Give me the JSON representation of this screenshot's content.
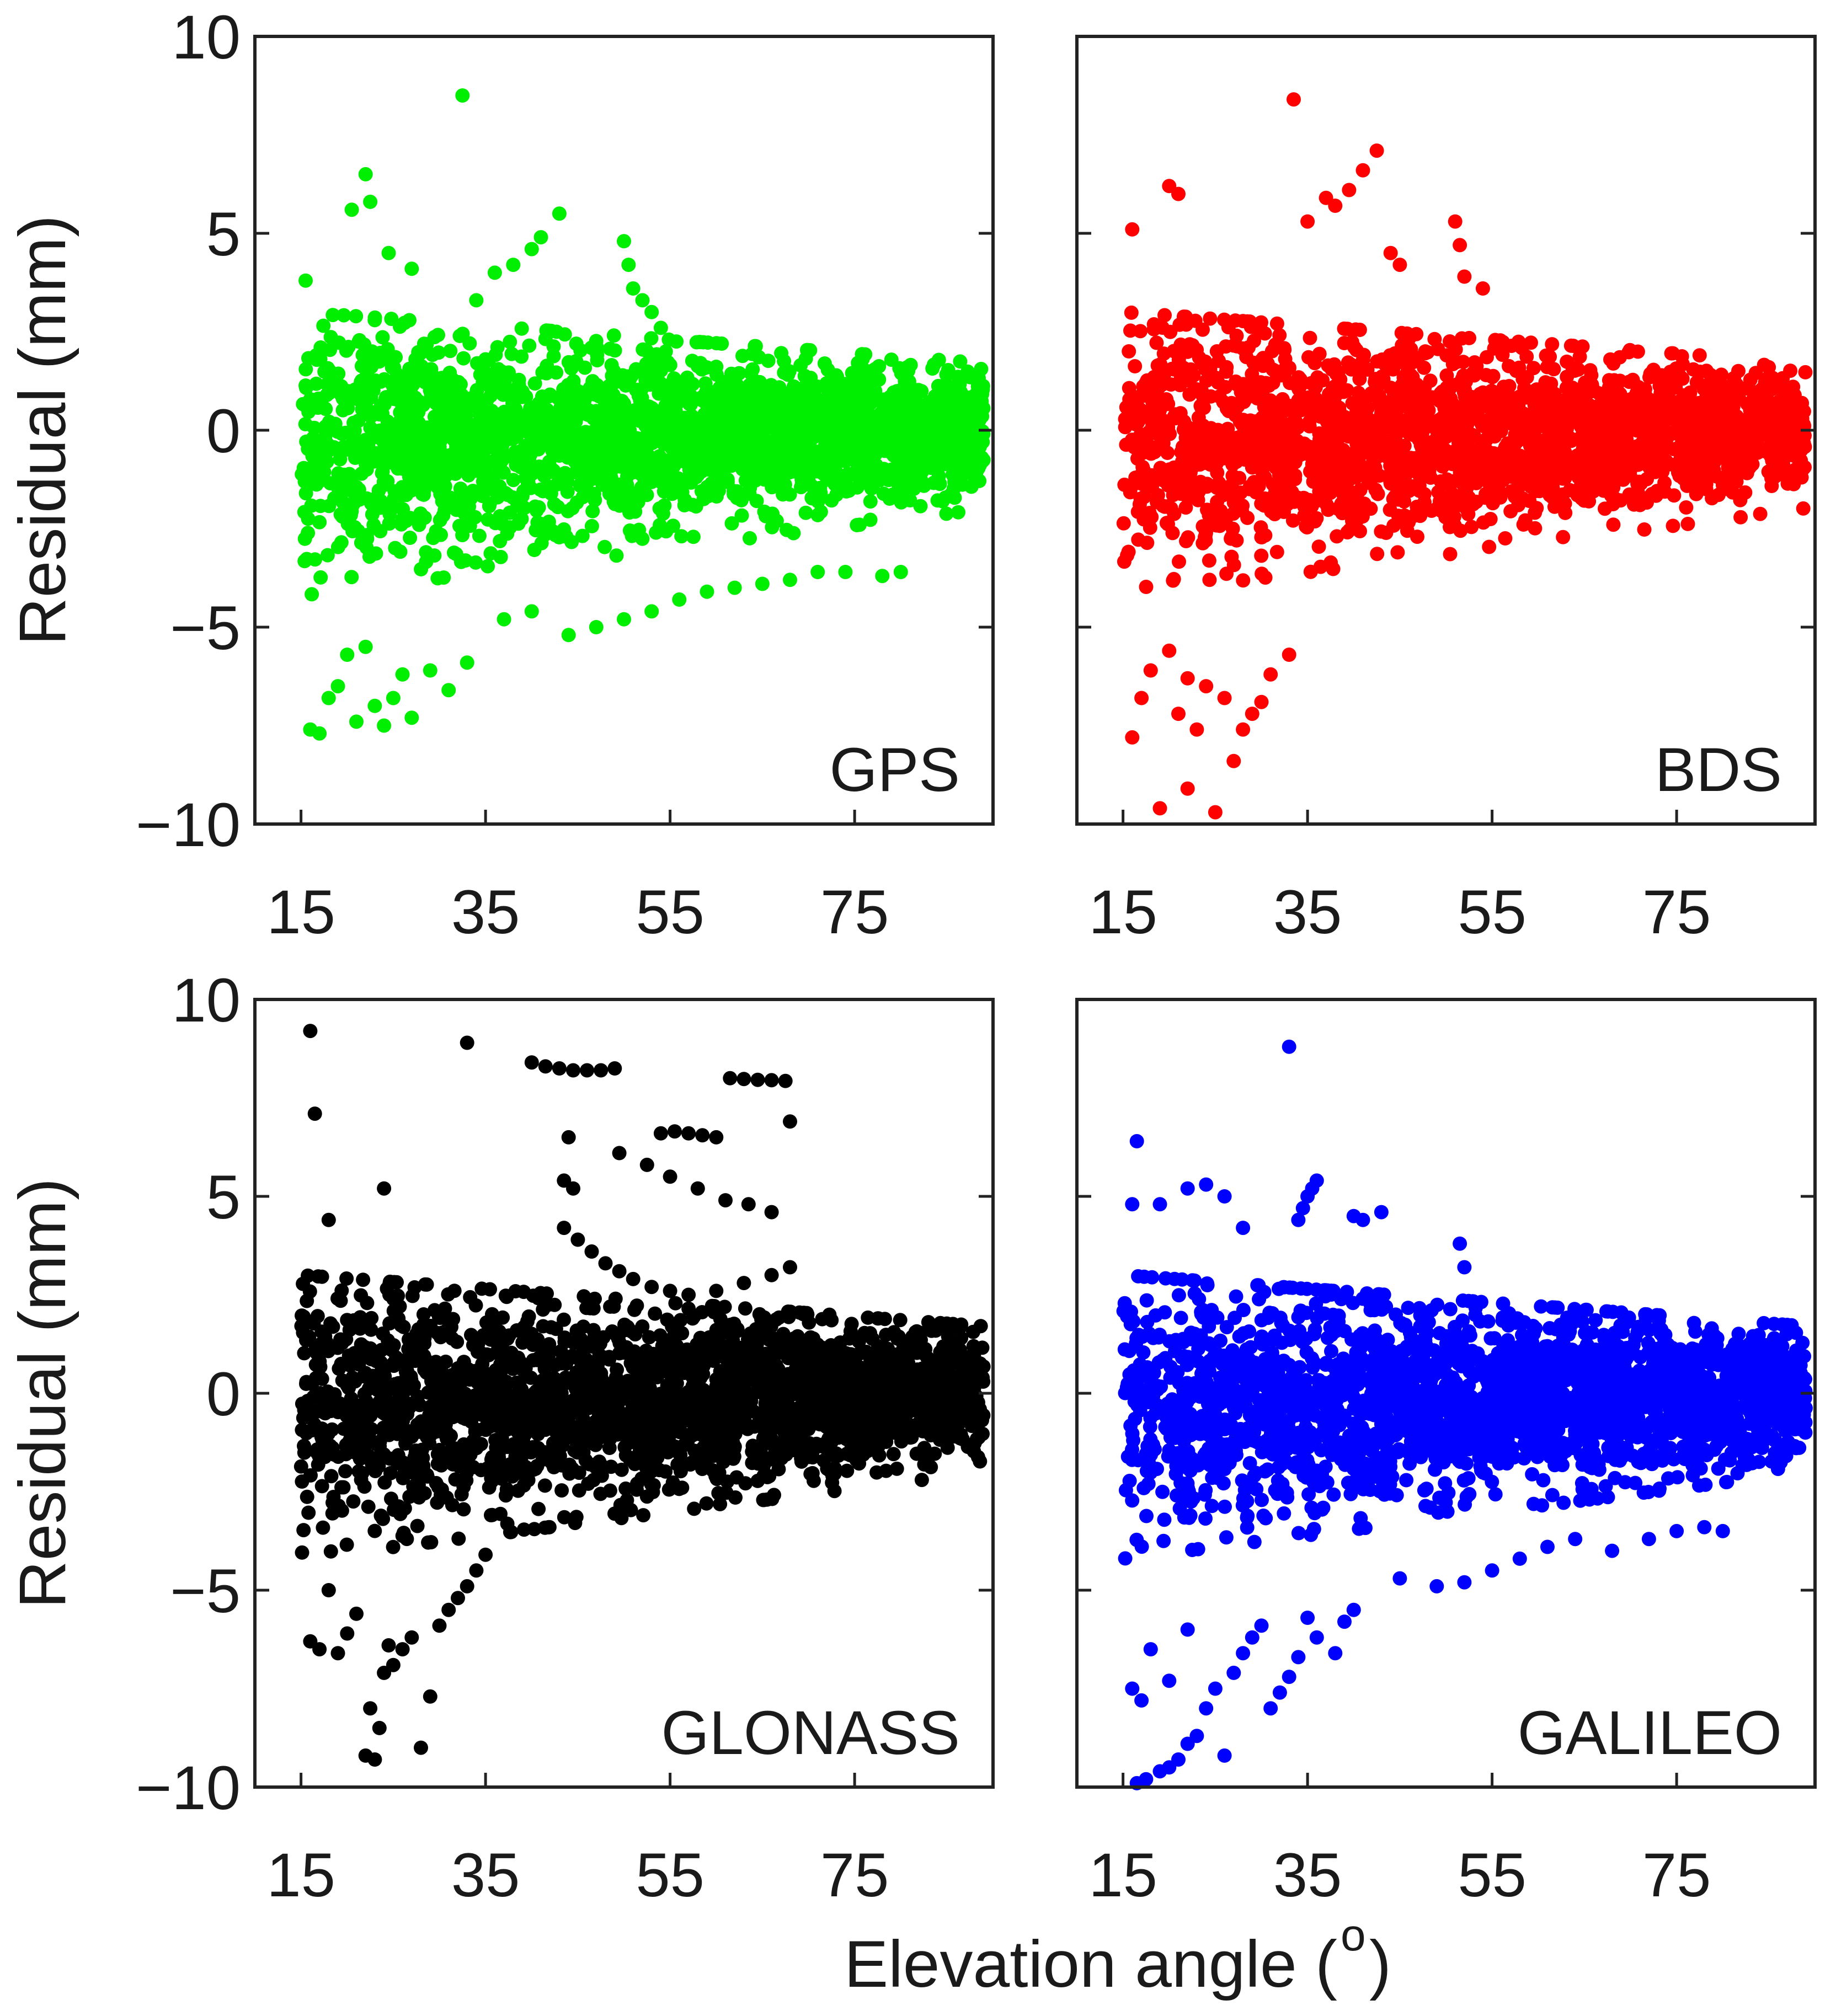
{
  "figure": {
    "ylabel": "Residual (mm)",
    "xlabel_main": "Elevation angle (",
    "xlabel_sup": "o",
    "xlabel_close": ")"
  },
  "chart_data": [
    {
      "type": "scatter",
      "name": "GPS",
      "label": "GPS",
      "color": "#00ee00",
      "xlim": [
        10,
        90
      ],
      "ylim": [
        -10,
        10
      ],
      "xticks": [
        15,
        35,
        55,
        75
      ],
      "yticks": [
        -10,
        -5,
        0,
        5,
        10
      ],
      "xticklabels": [
        "15",
        "35",
        "55",
        "75"
      ],
      "yticklabels": [
        "−10",
        "−5",
        "0",
        "5",
        "10"
      ],
      "core": {
        "x_min": 15,
        "x_max": 89,
        "spread_low_elev": 2.6,
        "spread_high_elev": 1.2
      },
      "outliers": [
        [
          32.5,
          8.5
        ],
        [
          22,
          6.5
        ],
        [
          22.5,
          5.8
        ],
        [
          20.5,
          5.6
        ],
        [
          24.5,
          4.5
        ],
        [
          27,
          4.1
        ],
        [
          15.5,
          3.8
        ],
        [
          43,
          5.5
        ],
        [
          41,
          4.9
        ],
        [
          40,
          4.6
        ],
        [
          38,
          4.2
        ],
        [
          36,
          4.0
        ],
        [
          34,
          3.3
        ],
        [
          50,
          4.8
        ],
        [
          50.5,
          4.2
        ],
        [
          51,
          3.6
        ],
        [
          52,
          3.3
        ],
        [
          53,
          3.0
        ],
        [
          54,
          2.6
        ],
        [
          16,
          -7.6
        ],
        [
          17,
          -7.7
        ],
        [
          18,
          -6.8
        ],
        [
          19,
          -6.5
        ],
        [
          21,
          -7.4
        ],
        [
          23,
          -7.0
        ],
        [
          24,
          -7.5
        ],
        [
          25,
          -6.8
        ],
        [
          26,
          -6.2
        ],
        [
          27,
          -7.3
        ],
        [
          29,
          -6.1
        ],
        [
          31,
          -6.6
        ],
        [
          33,
          -5.9
        ],
        [
          20,
          -5.7
        ],
        [
          22,
          -5.5
        ],
        [
          44,
          -5.2
        ],
        [
          47,
          -5.0
        ],
        [
          50,
          -4.8
        ],
        [
          53,
          -4.6
        ],
        [
          56,
          -4.3
        ],
        [
          59,
          -4.1
        ],
        [
          62,
          -4.0
        ],
        [
          65,
          -3.9
        ],
        [
          68,
          -3.8
        ],
        [
          71,
          -3.6
        ],
        [
          74,
          -3.6
        ],
        [
          78,
          -3.7
        ],
        [
          80,
          -3.6
        ],
        [
          40,
          -4.6
        ],
        [
          37,
          -4.8
        ]
      ]
    },
    {
      "type": "scatter",
      "name": "BDS",
      "label": "BDS",
      "color": "#ff0000",
      "xlim": [
        10,
        90
      ],
      "ylim": [
        -10,
        10
      ],
      "xticks": [
        15,
        35,
        55,
        75
      ],
      "yticks": [
        -10,
        -5,
        0,
        5,
        10
      ],
      "xticklabels": [
        "15",
        "35",
        "55",
        "75"
      ],
      "yticklabels": [
        "−10",
        "−5",
        "0",
        "5",
        "10"
      ],
      "core": {
        "x_min": 15,
        "x_max": 89,
        "spread_low_elev": 2.8,
        "spread_high_elev": 1.1
      },
      "outliers": [
        [
          33.5,
          8.4
        ],
        [
          42.5,
          7.1
        ],
        [
          41,
          6.6
        ],
        [
          39.5,
          6.1
        ],
        [
          38,
          5.7
        ],
        [
          37,
          5.9
        ],
        [
          35,
          5.3
        ],
        [
          20,
          6.2
        ],
        [
          21,
          6.0
        ],
        [
          16,
          5.1
        ],
        [
          51,
          5.3
        ],
        [
          51.5,
          4.7
        ],
        [
          52,
          3.9
        ],
        [
          54,
          3.6
        ],
        [
          44,
          4.5
        ],
        [
          45,
          4.2
        ],
        [
          19,
          -9.6
        ],
        [
          25,
          -9.7
        ],
        [
          22,
          -9.1
        ],
        [
          27,
          -8.4
        ],
        [
          23,
          -7.6
        ],
        [
          28,
          -7.6
        ],
        [
          29,
          -7.2
        ],
        [
          30,
          -6.9
        ],
        [
          31,
          -6.2
        ],
        [
          33,
          -5.7
        ],
        [
          16,
          -7.8
        ],
        [
          17,
          -6.8
        ],
        [
          18,
          -6.1
        ],
        [
          21,
          -7.2
        ],
        [
          24,
          -6.5
        ],
        [
          26,
          -6.8
        ],
        [
          20,
          -5.6
        ],
        [
          22,
          -6.3
        ]
      ]
    },
    {
      "type": "scatter",
      "name": "GLONASS",
      "label": "GLONASS",
      "color": "#000000",
      "xlim": [
        10,
        90
      ],
      "ylim": [
        -10,
        10
      ],
      "xticks": [
        15,
        35,
        55,
        75
      ],
      "yticks": [
        -10,
        -5,
        0,
        5,
        10
      ],
      "xticklabels": [
        "15",
        "35",
        "55",
        "75"
      ],
      "yticklabels": [
        "−10",
        "−5",
        "0",
        "5",
        "10"
      ],
      "core": {
        "x_min": 15,
        "x_max": 89,
        "spread_low_elev": 2.9,
        "spread_high_elev": 1.2
      },
      "outliers": [
        [
          16,
          9.2
        ],
        [
          16.5,
          7.1
        ],
        [
          18,
          4.4
        ],
        [
          24,
          5.2
        ],
        [
          33,
          8.9
        ],
        [
          40,
          8.4
        ],
        [
          41.5,
          8.3
        ],
        [
          43,
          8.25
        ],
        [
          44.5,
          8.2
        ],
        [
          46,
          8.2
        ],
        [
          47.5,
          8.2
        ],
        [
          49,
          8.25
        ],
        [
          54,
          6.6
        ],
        [
          55.5,
          6.65
        ],
        [
          57,
          6.6
        ],
        [
          58.5,
          6.55
        ],
        [
          60,
          6.5
        ],
        [
          61.5,
          8.0
        ],
        [
          63,
          7.98
        ],
        [
          64.5,
          7.96
        ],
        [
          66,
          7.95
        ],
        [
          67.5,
          7.93
        ],
        [
          68,
          6.9
        ],
        [
          44,
          6.5
        ],
        [
          43.5,
          5.4
        ],
        [
          44.5,
          5.2
        ],
        [
          49.5,
          6.1
        ],
        [
          52.5,
          5.8
        ],
        [
          55,
          5.5
        ],
        [
          58,
          5.2
        ],
        [
          61,
          4.9
        ],
        [
          63.5,
          4.8
        ],
        [
          66,
          4.6
        ],
        [
          43.5,
          4.2
        ],
        [
          45,
          3.9
        ],
        [
          46.5,
          3.6
        ],
        [
          48,
          3.3
        ],
        [
          49.5,
          3.1
        ],
        [
          51,
          2.9
        ],
        [
          53,
          2.7
        ],
        [
          55,
          2.6
        ],
        [
          57,
          2.5
        ],
        [
          60,
          2.6
        ],
        [
          63,
          2.8
        ],
        [
          66,
          3.0
        ],
        [
          68,
          3.2
        ],
        [
          16,
          -6.3
        ],
        [
          17,
          -6.5
        ],
        [
          19,
          -6.6
        ],
        [
          20,
          -6.1
        ],
        [
          22,
          -9.2
        ],
        [
          23,
          -9.3
        ],
        [
          23.5,
          -8.5
        ],
        [
          24,
          -7.1
        ],
        [
          25,
          -6.9
        ],
        [
          26,
          -6.5
        ],
        [
          27,
          -6.2
        ],
        [
          28,
          -9.0
        ],
        [
          29,
          -7.7
        ],
        [
          30,
          -5.9
        ],
        [
          31,
          -5.5
        ],
        [
          32,
          -5.2
        ],
        [
          33,
          -4.9
        ],
        [
          34,
          -4.5
        ],
        [
          35,
          -4.1
        ],
        [
          18,
          -5.0
        ],
        [
          21,
          -5.6
        ],
        [
          22.5,
          -8.0
        ],
        [
          24.5,
          -6.4
        ]
      ]
    },
    {
      "type": "scatter",
      "name": "GALILEO",
      "label": "GALILEO",
      "color": "#0000ff",
      "xlim": [
        10,
        90
      ],
      "ylim": [
        -10,
        10
      ],
      "xticks": [
        15,
        35,
        55,
        75
      ],
      "yticks": [
        -10,
        -5,
        0,
        5,
        10
      ],
      "xticklabels": [
        "15",
        "35",
        "55",
        "75"
      ],
      "yticklabels": [
        "−10",
        "−5",
        "0",
        "5",
        "10"
      ],
      "core": {
        "x_min": 15,
        "x_max": 89,
        "spread_low_elev": 2.8,
        "spread_high_elev": 1.3
      },
      "outliers": [
        [
          33,
          8.8
        ],
        [
          16.5,
          6.4
        ],
        [
          16,
          4.8
        ],
        [
          19,
          4.8
        ],
        [
          22,
          5.2
        ],
        [
          24,
          5.3
        ],
        [
          26,
          5.0
        ],
        [
          28,
          4.2
        ],
        [
          36,
          5.4
        ],
        [
          35.5,
          5.2
        ],
        [
          35,
          5.0
        ],
        [
          34.5,
          4.7
        ],
        [
          34,
          4.4
        ],
        [
          40,
          4.5
        ],
        [
          41,
          4.4
        ],
        [
          43,
          4.6
        ],
        [
          51.5,
          3.8
        ],
        [
          52,
          3.2
        ],
        [
          16.5,
          -9.9
        ],
        [
          17.5,
          -9.8
        ],
        [
          19,
          -9.6
        ],
        [
          20,
          -9.5
        ],
        [
          21,
          -9.3
        ],
        [
          22,
          -8.9
        ],
        [
          23,
          -8.7
        ],
        [
          24,
          -8.0
        ],
        [
          25,
          -7.5
        ],
        [
          26,
          -9.2
        ],
        [
          27,
          -7.1
        ],
        [
          28,
          -6.6
        ],
        [
          29,
          -6.2
        ],
        [
          30,
          -5.9
        ],
        [
          31,
          -8.0
        ],
        [
          32,
          -7.6
        ],
        [
          33,
          -7.2
        ],
        [
          34,
          -6.7
        ],
        [
          35,
          -5.7
        ],
        [
          36,
          -6.2
        ],
        [
          16,
          -7.5
        ],
        [
          17,
          -7.8
        ],
        [
          18,
          -6.5
        ],
        [
          20,
          -7.3
        ],
        [
          22,
          -6.0
        ],
        [
          38,
          -6.6
        ],
        [
          39,
          -5.8
        ],
        [
          40,
          -5.5
        ],
        [
          45,
          -4.7
        ],
        [
          49,
          -4.9
        ],
        [
          52,
          -4.8
        ],
        [
          55,
          -4.5
        ],
        [
          58,
          -4.2
        ],
        [
          61,
          -3.9
        ],
        [
          64,
          -3.7
        ],
        [
          68,
          -4.0
        ],
        [
          72,
          -3.7
        ],
        [
          75,
          -3.5
        ],
        [
          78,
          -3.4
        ],
        [
          80,
          -3.5
        ]
      ]
    }
  ]
}
